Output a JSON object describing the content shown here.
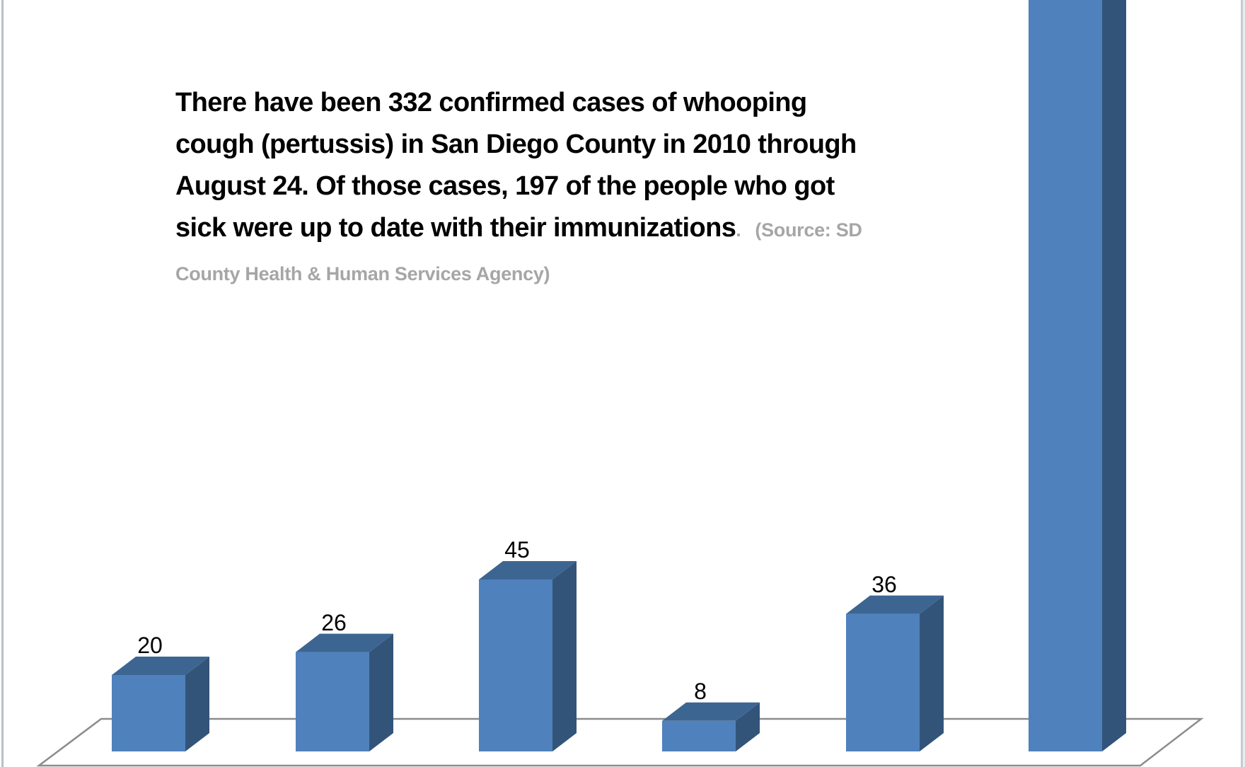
{
  "annotation": {
    "main_text": "There have been 332 confirmed cases of whooping cough (pertussis) in San Diego County in 2010 through August 24. Of those cases, 197 of the people who got sick were up to date with their immunizations",
    "period": ".",
    "source_text": "(Source: SD County Health & Human Services Agency)"
  },
  "colors": {
    "bar_front": "#4F81BD",
    "bar_top": "#3D6591",
    "bar_side": "#335479",
    "floor_line": "#8c8c8c",
    "source_text": "#A6A6A6"
  },
  "chart_data": {
    "type": "bar",
    "style": "3d-column",
    "title": "",
    "xlabel": "",
    "ylabel": "",
    "categories": [
      "",
      "",
      "",
      "",
      "",
      ""
    ],
    "values": [
      20,
      26,
      45,
      8,
      36,
      197
    ],
    "data_labels": [
      "20",
      "26",
      "45",
      "8",
      "36",
      ""
    ],
    "series": [
      {
        "name": "",
        "values": [
          20,
          26,
          45,
          8,
          36,
          197
        ]
      }
    ],
    "annotation": "There have been 332 confirmed cases of whooping cough (pertussis) in San Diego County in 2010 through August 24. Of those cases, 197 of the people who got sick were up to date with their immunizations. (Source: SD County Health & Human Services Agency)",
    "grid": false,
    "legend": "none",
    "note_last_bar": "sixth bar extends beyond top of view; label not visible"
  }
}
